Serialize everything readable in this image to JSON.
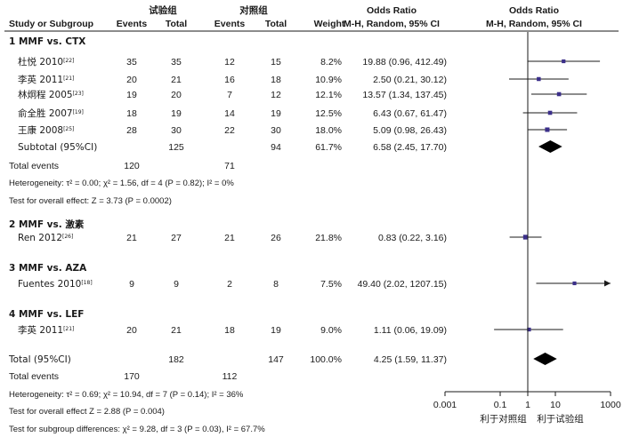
{
  "header": {
    "group1_title": "试验组",
    "group2_title": "对照组",
    "odds_ratio_1": "Odds Ratio",
    "odds_ratio_2": "Odds Ratio",
    "col_study": "Study or Subgroup",
    "col_events1": "Events",
    "col_total1": "Total",
    "col_events2": "Events",
    "col_total2": "Total",
    "col_weight": "Weight",
    "col_method1": "M-H, Random, 95% CI",
    "col_method2": "M-H, Random, 95% CI"
  },
  "chart_data": {
    "type": "forest",
    "xscale": "log",
    "xlim": [
      0.001,
      1000
    ],
    "xticks": [
      "0.001",
      "0.1",
      "1",
      "10",
      "1000"
    ],
    "xlabel_left": "利于对照组",
    "xlabel_right": "利于试验组",
    "subgroups": [
      {
        "title": "1 MMF vs. CTX",
        "studies": [
          {
            "name": "杜悦 2010",
            "ref": "[22]",
            "e1": "35",
            "n1": "35",
            "e2": "12",
            "n2": "15",
            "weight": "8.2%",
            "ci_text": "19.88 (0.96, 412.49)",
            "or": 19.88,
            "lo": 0.96,
            "hi": 412.49
          },
          {
            "name": "李英 2011",
            "ref": "[21]",
            "e1": "20",
            "n1": "21",
            "e2": "16",
            "n2": "18",
            "weight": "10.9%",
            "ci_text": "2.50 (0.21, 30.12)",
            "or": 2.5,
            "lo": 0.21,
            "hi": 30.12
          },
          {
            "name": "林炯程 2005",
            "ref": "[23]",
            "e1": "19",
            "n1": "20",
            "e2": "7",
            "n2": "12",
            "weight": "12.1%",
            "ci_text": "13.57 (1.34, 137.45)",
            "or": 13.57,
            "lo": 1.34,
            "hi": 137.45
          },
          {
            "name": "俞全胜 2007",
            "ref": "[19]",
            "e1": "18",
            "n1": "19",
            "e2": "14",
            "n2": "19",
            "weight": "12.5%",
            "ci_text": "6.43 (0.67, 61.47)",
            "or": 6.43,
            "lo": 0.67,
            "hi": 61.47
          },
          {
            "name": "王康 2008",
            "ref": "[25]",
            "e1": "28",
            "n1": "30",
            "e2": "22",
            "n2": "30",
            "weight": "18.0%",
            "ci_text": "5.09 (0.98, 26.43)",
            "or": 5.09,
            "lo": 0.98,
            "hi": 26.43
          }
        ],
        "subtotal": {
          "label": "Subtotal (95%CI)",
          "n1": "125",
          "n2": "94",
          "weight": "61.7%",
          "ci_text": "6.58 (2.45, 17.70)",
          "or": 6.58,
          "lo": 2.45,
          "hi": 17.7
        },
        "total_events": {
          "label": "Total events",
          "e1": "120",
          "e2": "71"
        },
        "heterogeneity": "Heterogeneity: τ² = 0.00;  χ² = 1.56, df = 4 (P = 0.82); I² = 0%",
        "overall_effect": "Test for overall effect: Z = 3.73 (P = 0.0002)"
      },
      {
        "title": "2 MMF vs. 激素",
        "studies": [
          {
            "name": "Ren 2012",
            "ref": "[26]",
            "e1": "21",
            "n1": "27",
            "e2": "21",
            "n2": "26",
            "weight": "21.8%",
            "ci_text": "0.83 (0.22, 3.16)",
            "or": 0.83,
            "lo": 0.22,
            "hi": 3.16
          }
        ]
      },
      {
        "title": "3 MMF vs. AZA",
        "studies": [
          {
            "name": "Fuentes 2010",
            "ref": "[18]",
            "e1": "9",
            "n1": "9",
            "e2": "2",
            "n2": "8",
            "weight": "7.5%",
            "ci_text": "49.40 (2.02, 1207.15)",
            "or": 49.4,
            "lo": 2.02,
            "hi": 1207.15
          }
        ]
      },
      {
        "title": "4 MMF vs. LEF",
        "studies": [
          {
            "name": "李英 2011",
            "ref": "[21]",
            "e1": "20",
            "n1": "21",
            "e2": "18",
            "n2": "19",
            "weight": "9.0%",
            "ci_text": "1.11 (0.06, 19.09)",
            "or": 1.11,
            "lo": 0.06,
            "hi": 19.09
          }
        ]
      }
    ],
    "total": {
      "label": "Total (95%CI)",
      "n1": "182",
      "n2": "147",
      "weight": "100.0%",
      "ci_text": "4.25 (1.59, 11.37)",
      "or": 4.25,
      "lo": 1.59,
      "hi": 11.37
    },
    "total_events": {
      "label": "Total events",
      "e1": "170",
      "e2": "112"
    },
    "heterogeneity": "Heterogeneity: τ² = 0.69;  χ² = 10.94, df = 7 (P = 0.14); I² = 36%",
    "overall_effect": "Test for overall effect Z = 2.88 (P = 0.004)",
    "subgroup_differences": "Test for subgroup differences: χ² = 9.28, df = 3 (P = 0.03), I² = 67.7%"
  },
  "colors": {
    "square": "#3b2f8a",
    "diamond": "#000000",
    "line": "#1a1a1a"
  }
}
